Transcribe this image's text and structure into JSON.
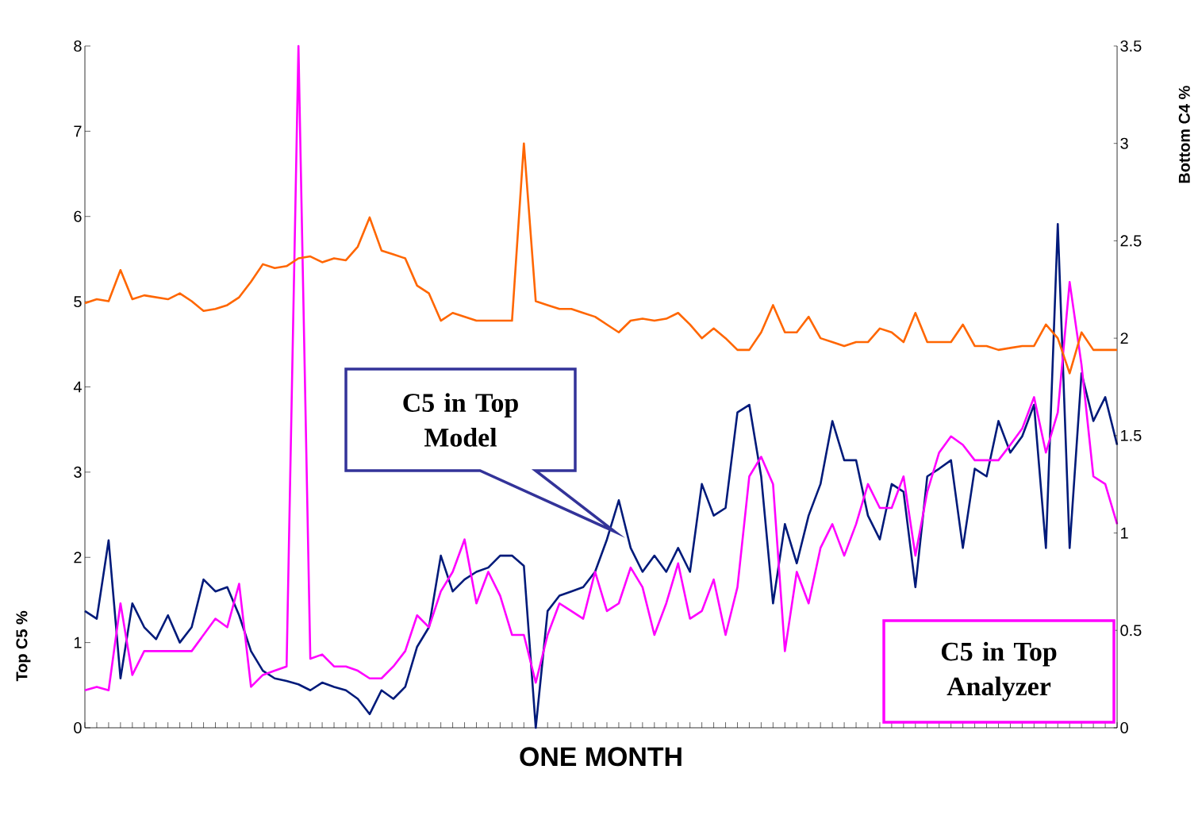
{
  "chart_data": {
    "type": "line",
    "xlabel": "ONE MONTH",
    "ylabel": "Top C5 %",
    "y2label": "Bottom C4 %",
    "annotations": [
      "C5 in Top Model",
      "C5 in Top Analyzer"
    ],
    "categories": [
      null,
      null,
      null,
      null,
      null,
      null,
      null,
      null,
      null,
      null,
      null,
      null,
      null,
      null,
      null,
      null,
      null,
      null,
      null,
      null,
      null,
      null,
      null,
      null,
      null,
      null,
      null,
      null,
      null,
      null,
      null,
      null,
      null,
      null,
      null,
      null,
      null,
      null,
      null,
      null,
      null,
      null,
      null,
      null,
      null,
      null,
      null,
      null,
      null,
      null,
      null,
      null,
      null,
      null,
      null,
      null,
      null,
      null,
      null,
      null,
      null,
      null,
      null,
      null,
      null,
      null,
      null,
      null,
      null,
      null,
      null,
      null,
      null,
      null,
      null,
      null,
      null,
      null,
      null,
      null,
      null,
      null,
      null,
      null,
      null,
      null,
      null,
      null
    ],
    "ylim": [
      0,
      8
    ],
    "yticks": [
      0,
      1,
      2,
      3,
      4,
      5,
      6,
      7,
      8
    ],
    "y2lim": [
      0,
      3.5
    ],
    "y2ticks": [
      0,
      0.5,
      1,
      1.5,
      2,
      2.5,
      3,
      3.5
    ],
    "series": [
      {
        "color": "#ff6600",
        "axis": "y2",
        "values": [
          2.18,
          2.2,
          2.19,
          2.35,
          2.2,
          2.22,
          2.21,
          2.2,
          2.23,
          2.19,
          2.14,
          2.15,
          2.17,
          2.21,
          2.29,
          2.38,
          2.36,
          2.37,
          2.41,
          2.42,
          2.39,
          2.41,
          2.4,
          2.47,
          2.62,
          2.45,
          2.43,
          2.41,
          2.27,
          2.23,
          2.09,
          2.13,
          2.11,
          2.09,
          2.09,
          2.09,
          2.09,
          3.0,
          2.19,
          2.17,
          2.15,
          2.15,
          2.13,
          2.11,
          2.07,
          2.03,
          2.09,
          2.1,
          2.09,
          2.1,
          2.13,
          2.07,
          2.0,
          2.05,
          2.0,
          1.94,
          1.94,
          2.03,
          2.17,
          2.03,
          2.03,
          2.11,
          2.0,
          1.98,
          1.96,
          1.98,
          1.98,
          2.05,
          2.03,
          1.98,
          2.13,
          1.98,
          1.98,
          1.98,
          2.07,
          1.96,
          1.96,
          1.94,
          1.95,
          1.96,
          1.96,
          2.07,
          2.0,
          1.82,
          2.03,
          1.94,
          1.94,
          1.94
        ]
      },
      {
        "color": "#001a7a",
        "values": [
          1.37,
          1.28,
          2.2,
          0.58,
          1.46,
          1.18,
          1.04,
          1.32,
          1.0,
          1.18,
          1.74,
          1.6,
          1.65,
          1.32,
          0.9,
          0.67,
          0.58,
          0.55,
          0.51,
          0.44,
          0.53,
          0.48,
          0.44,
          0.34,
          0.16,
          0.44,
          0.34,
          0.48,
          0.95,
          1.18,
          2.02,
          1.6,
          1.74,
          1.83,
          1.88,
          2.02,
          2.02,
          1.9,
          0.0,
          1.37,
          1.55,
          1.6,
          1.65,
          1.83,
          2.21,
          2.67,
          2.11,
          1.83,
          2.02,
          1.83,
          2.11,
          1.83,
          2.86,
          2.49,
          2.58,
          3.7,
          3.79,
          2.95,
          1.46,
          2.39,
          1.93,
          2.49,
          2.86,
          3.6,
          3.14,
          3.14,
          2.49,
          2.21,
          2.86,
          2.77,
          1.65,
          2.95,
          3.04,
          3.14,
          2.11,
          3.04,
          2.95,
          3.6,
          3.23,
          3.42,
          3.79,
          2.11,
          5.91,
          2.11,
          4.16,
          3.6,
          3.88,
          3.32
        ]
      },
      {
        "color": "#ff00ff",
        "values": [
          0.44,
          0.48,
          0.44,
          1.46,
          0.62,
          0.9,
          0.9,
          0.9,
          0.9,
          0.9,
          1.09,
          1.28,
          1.18,
          1.69,
          0.48,
          0.62,
          0.67,
          0.72,
          8.0,
          0.81,
          0.86,
          0.72,
          0.72,
          0.67,
          0.58,
          0.58,
          0.72,
          0.9,
          1.32,
          1.18,
          1.6,
          1.83,
          2.21,
          1.46,
          1.83,
          1.55,
          1.09,
          1.09,
          0.53,
          1.09,
          1.46,
          1.37,
          1.28,
          1.83,
          1.37,
          1.46,
          1.88,
          1.65,
          1.09,
          1.46,
          1.93,
          1.28,
          1.37,
          1.74,
          1.09,
          1.65,
          2.95,
          3.18,
          2.86,
          0.9,
          1.83,
          1.46,
          2.11,
          2.39,
          2.02,
          2.39,
          2.86,
          2.58,
          2.58,
          2.95,
          2.02,
          2.77,
          3.23,
          3.42,
          3.32,
          3.14,
          3.14,
          3.14,
          3.32,
          3.51,
          3.88,
          3.23,
          3.7,
          5.23,
          4.26,
          2.95,
          2.86,
          2.39
        ]
      }
    ]
  }
}
